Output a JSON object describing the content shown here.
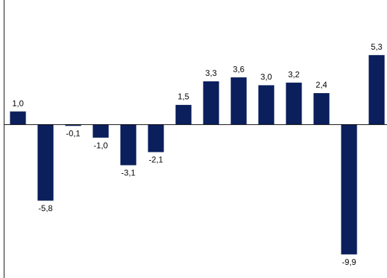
{
  "chart_data": {
    "type": "bar",
    "categories": [
      null,
      null,
      null,
      null,
      null,
      null,
      null,
      null,
      null,
      null,
      null,
      null,
      null,
      null
    ],
    "values": [
      1.0,
      -5.8,
      -0.1,
      -1.0,
      -3.1,
      -2.1,
      1.5,
      3.3,
      3.6,
      3.0,
      3.2,
      2.4,
      -9.9,
      5.3
    ],
    "value_labels": [
      "1,0",
      "-5,8",
      "-0,1",
      "-1,0",
      "-3,1",
      "-2,1",
      "1,5",
      "3,3",
      "3,6",
      "3,0",
      "3,2",
      "2,4",
      "-9,9",
      "5,3"
    ],
    "color": "#0b1f5c",
    "ylim": [
      -11.7,
      9.5
    ]
  }
}
